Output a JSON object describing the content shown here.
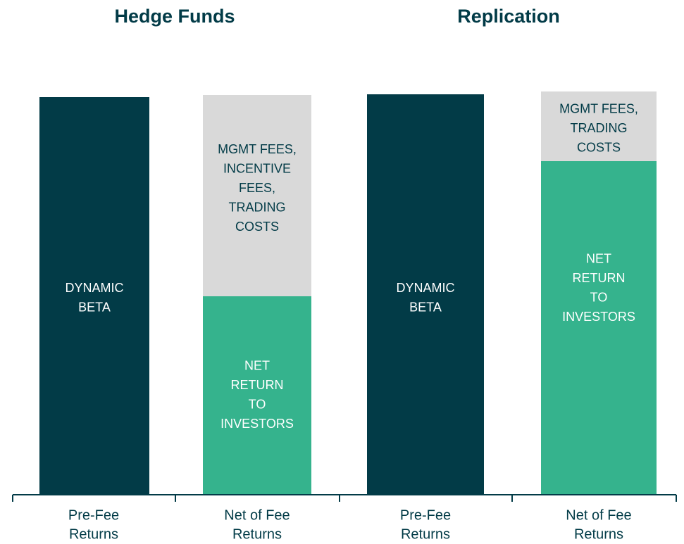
{
  "titles": [
    "Hedge Funds",
    "Replication"
  ],
  "bars": [
    {
      "category": [
        "Pre-Fee",
        "Returns"
      ],
      "segments": [
        {
          "label": [
            "DYNAMIC",
            "BETA"
          ],
          "color": "#023b47"
        }
      ]
    },
    {
      "category": [
        "Net of Fee",
        "Returns"
      ],
      "segments": [
        {
          "label": [
            "NET",
            "RETURN",
            "TO",
            "INVESTORS"
          ],
          "color": "#35b38d"
        },
        {
          "label": [
            "MGMT FEES,",
            "INCENTIVE",
            "FEES,",
            "TRADING",
            "COSTS"
          ],
          "color": "#d9d9d9"
        }
      ]
    },
    {
      "category": [
        "Pre-Fee",
        "Returns"
      ],
      "segments": [
        {
          "label": [
            "DYNAMIC",
            "BETA"
          ],
          "color": "#023b47"
        }
      ]
    },
    {
      "category": [
        "Net of Fee",
        "Returns"
      ],
      "segments": [
        {
          "label": [
            "NET",
            "RETURN",
            "TO",
            "INVESTORS"
          ],
          "color": "#35b38d"
        },
        {
          "label": [
            "MGMT FEES,",
            "TRADING",
            "COSTS"
          ],
          "color": "#d9d9d9"
        }
      ]
    }
  ]
}
